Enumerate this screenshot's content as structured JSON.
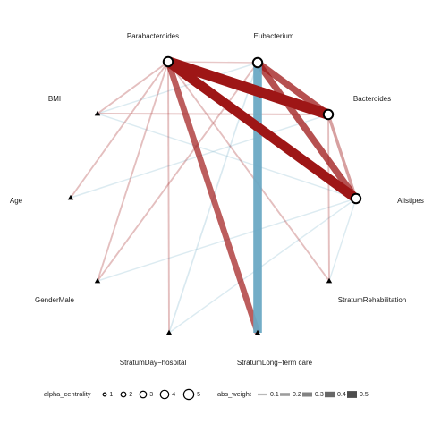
{
  "colors": {
    "positive": "#9e1616",
    "negative": "#6aa8c4",
    "node_stroke": "#000000",
    "node_fill": "#ffffff"
  },
  "nodes": [
    {
      "id": "Parabacteroides",
      "label": "Parabacteroides",
      "shape": "circle",
      "alpha_centrality": 3
    },
    {
      "id": "Eubacterium",
      "label": "Eubacterium",
      "shape": "circle",
      "alpha_centrality": 3
    },
    {
      "id": "Bacteroides",
      "label": "Bacteroides",
      "shape": "circle",
      "alpha_centrality": 3
    },
    {
      "id": "Alistipes",
      "label": "Alistipes",
      "shape": "circle",
      "alpha_centrality": 3
    },
    {
      "id": "BMI",
      "label": "BMI",
      "shape": "triangle"
    },
    {
      "id": "Age",
      "label": "Age",
      "shape": "triangle"
    },
    {
      "id": "GenderMale",
      "label": "GenderMale",
      "shape": "triangle"
    },
    {
      "id": "StratumDayHospital",
      "label": "StratumDay−hospital",
      "shape": "triangle"
    },
    {
      "id": "StratumLongTermCare",
      "label": "StratumLong−term care",
      "shape": "triangle"
    },
    {
      "id": "StratumRehabilitation",
      "label": "StratumRehabilitation",
      "shape": "triangle"
    }
  ],
  "edges": [
    {
      "from": "Parabacteroides",
      "to": "Bacteroides",
      "sign": "positive",
      "abs_weight": 0.5
    },
    {
      "from": "Parabacteroides",
      "to": "Alistipes",
      "sign": "positive",
      "abs_weight": 0.45
    },
    {
      "from": "Eubacterium",
      "to": "Bacteroides",
      "sign": "positive",
      "abs_weight": 0.3
    },
    {
      "from": "Eubacterium",
      "to": "Alistipes",
      "sign": "positive",
      "abs_weight": 0.3
    },
    {
      "from": "Bacteroides",
      "to": "Alistipes",
      "sign": "positive",
      "abs_weight": 0.12
    },
    {
      "from": "Eubacterium",
      "to": "StratumLongTermCare",
      "sign": "negative",
      "abs_weight": 0.4
    },
    {
      "from": "Parabacteroides",
      "to": "StratumLongTermCare",
      "sign": "positive",
      "abs_weight": 0.27
    },
    {
      "from": "Parabacteroides",
      "to": "Eubacterium",
      "sign": "positive",
      "abs_weight": 0.03
    },
    {
      "from": "Parabacteroides",
      "to": "BMI",
      "sign": "positive",
      "abs_weight": 0.05
    },
    {
      "from": "Parabacteroides",
      "to": "Age",
      "sign": "positive",
      "abs_weight": 0.05
    },
    {
      "from": "Parabacteroides",
      "to": "GenderMale",
      "sign": "positive",
      "abs_weight": 0.05
    },
    {
      "from": "Parabacteroides",
      "to": "StratumDayHospital",
      "sign": "positive",
      "abs_weight": 0.05
    },
    {
      "from": "Parabacteroides",
      "to": "StratumRehabilitation",
      "sign": "positive",
      "abs_weight": 0.05
    },
    {
      "from": "Eubacterium",
      "to": "GenderMale",
      "sign": "positive",
      "abs_weight": 0.05
    },
    {
      "from": "Eubacterium",
      "to": "StratumDayHospital",
      "sign": "negative",
      "abs_weight": 0.04
    },
    {
      "from": "Eubacterium",
      "to": "BMI",
      "sign": "negative",
      "abs_weight": 0.03
    },
    {
      "from": "Bacteroides",
      "to": "BMI",
      "sign": "positive",
      "abs_weight": 0.05
    },
    {
      "from": "Bacteroides",
      "to": "Age",
      "sign": "negative",
      "abs_weight": 0.03
    },
    {
      "from": "Bacteroides",
      "to": "StratumRehabilitation",
      "sign": "positive",
      "abs_weight": 0.05
    },
    {
      "from": "Alistipes",
      "to": "BMI",
      "sign": "negative",
      "abs_weight": 0.03
    },
    {
      "from": "Alistipes",
      "to": "GenderMale",
      "sign": "negative",
      "abs_weight": 0.03
    },
    {
      "from": "Alistipes",
      "to": "StratumRehabilitation",
      "sign": "negative",
      "abs_weight": 0.03
    },
    {
      "from": "Alistipes",
      "to": "StratumDayHospital",
      "sign": "negative",
      "abs_weight": 0.03
    }
  ],
  "legend": {
    "alpha_centrality": {
      "title": "alpha_centrality",
      "items": [
        {
          "label": "1",
          "value": 1
        },
        {
          "label": "2",
          "value": 2
        },
        {
          "label": "3",
          "value": 3
        },
        {
          "label": "4",
          "value": 4
        },
        {
          "label": "5",
          "value": 5
        }
      ]
    },
    "abs_weight": {
      "title": "abs_weight",
      "items": [
        {
          "label": "0.1",
          "value": 0.1
        },
        {
          "label": "0.2",
          "value": 0.2
        },
        {
          "label": "0.3",
          "value": 0.3
        },
        {
          "label": "0.4",
          "value": 0.4
        },
        {
          "label": "0.5",
          "value": 0.5
        }
      ]
    }
  }
}
